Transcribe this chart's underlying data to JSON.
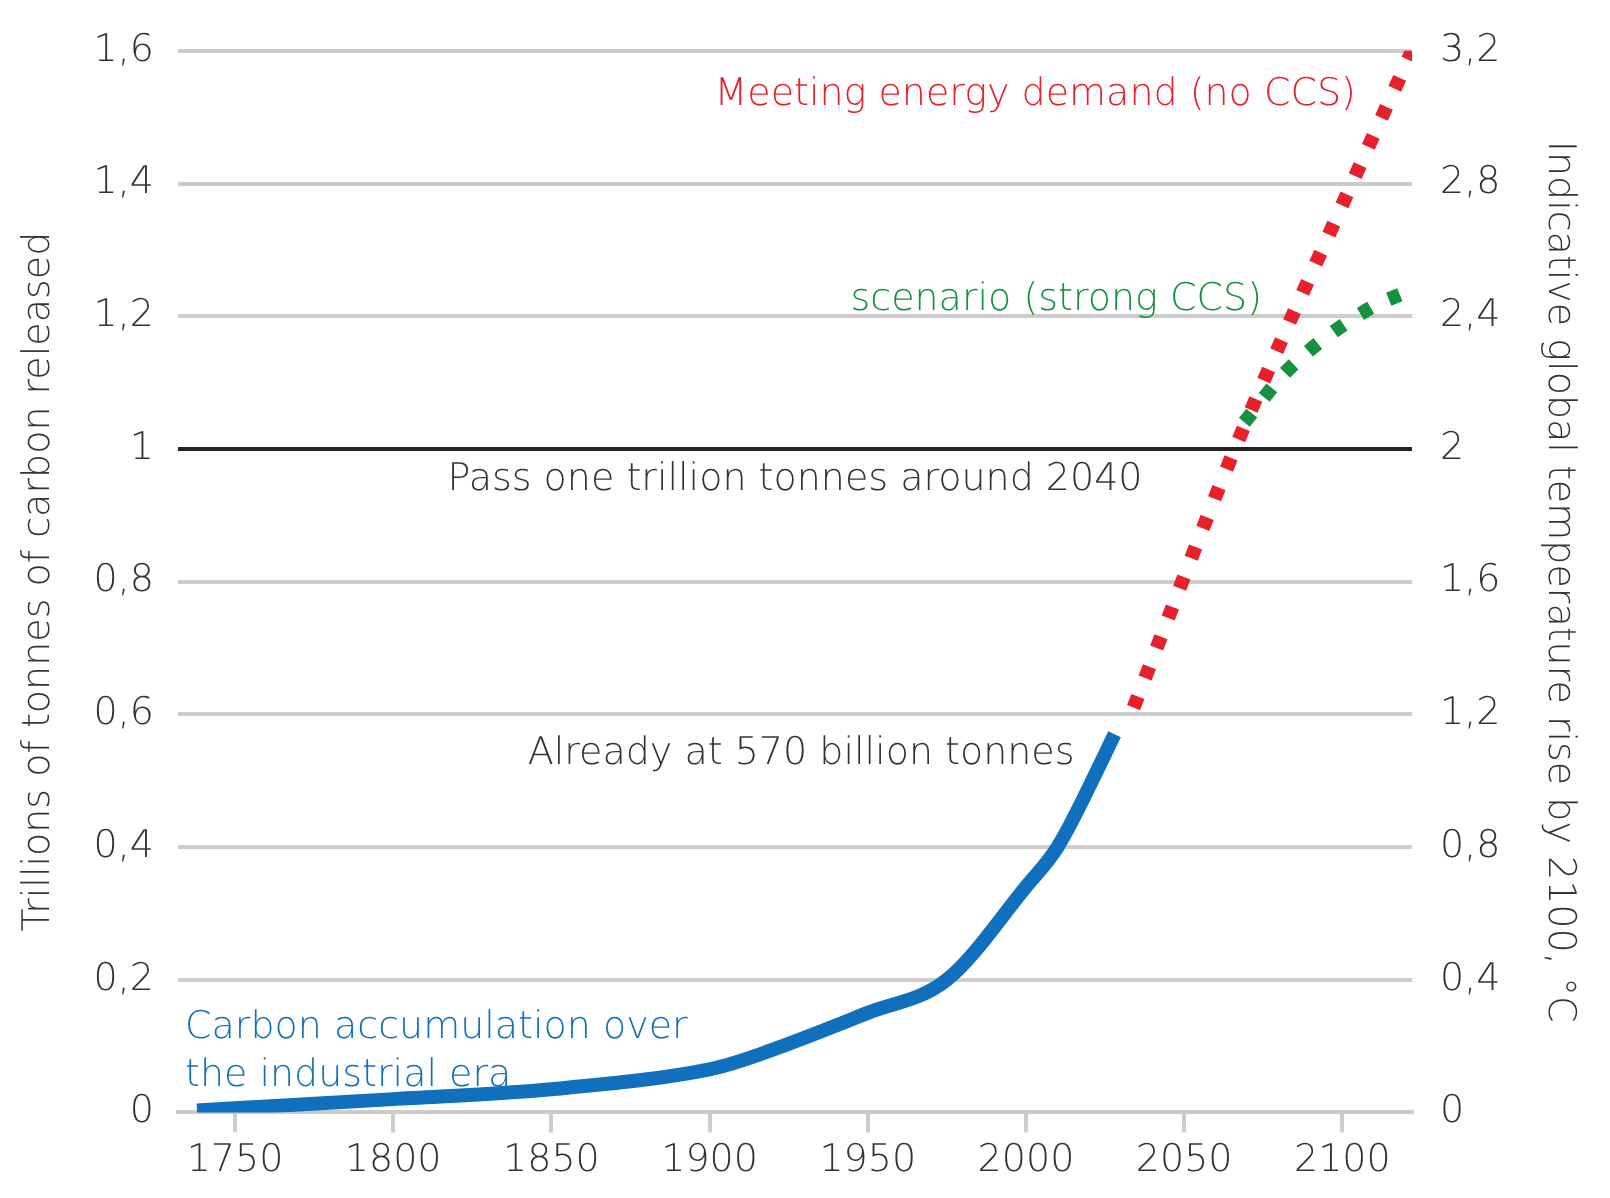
{
  "chart_data": {
    "type": "line",
    "ylabel": "Trillions of tonnes of carbon released",
    "y2label": "Indicative global temperature rise by 2100, °C",
    "xlim": [
      1732,
      2122
    ],
    "xticks": [
      1750,
      1800,
      1850,
      1900,
      1950,
      2000,
      2050,
      2100
    ],
    "ylim": [
      0,
      1.6
    ],
    "yticks": [
      0,
      {
        "value": 0.2,
        "label": "0,2"
      },
      {
        "value": 0.4,
        "label": "0,4"
      },
      {
        "value": 0.6,
        "label": "0,6"
      },
      {
        "value": 0.8,
        "label": "0,8"
      },
      1,
      {
        "value": 1.2,
        "label": "1,2"
      },
      {
        "value": 1.4,
        "label": "1,4"
      },
      {
        "value": 1.6,
        "label": "1,6"
      }
    ],
    "y2lim": [
      0,
      3.2
    ],
    "y2ticks": [
      0,
      {
        "value": 0.4,
        "label": "0,4"
      },
      {
        "value": 0.8,
        "label": "0,8"
      },
      {
        "value": 1.2,
        "label": "1,2"
      },
      {
        "value": 1.6,
        "label": "1,6"
      },
      2,
      {
        "value": 2.4,
        "label": "2,4"
      },
      {
        "value": 2.8,
        "label": "2,8"
      },
      {
        "value": 3.2,
        "label": "3,2"
      }
    ],
    "grid": "y",
    "legend": false,
    "marker": "none",
    "series": [
      {
        "name": "Carbon accumulation over the industrial era",
        "color": "#1170bd",
        "line_style": "solid",
        "x": [
          1738,
          1800,
          1850,
          1900,
          1910,
          1950,
          1975,
          2000,
          2010,
          2025,
          2028
        ],
        "values": [
          0.003,
          0.02,
          0.035,
          0.065,
          0.078,
          0.15,
          0.2,
          0.34,
          0.4,
          0.54,
          0.57
        ]
      },
      {
        "name": "Meeting energy demand (no CCS)",
        "color": "#e8202a",
        "line_style": "dotted",
        "x": [
          2034,
          2066,
          2103,
          2122
        ],
        "values": [
          0.61,
          1.0,
          1.4,
          1.6
        ]
      },
      {
        "name": "scenario (strong CCS)",
        "color": "#15923f",
        "line_style": "dotted",
        "x": [
          2069,
          2083,
          2108,
          2122
        ],
        "values": [
          1.04,
          1.12,
          1.21,
          1.24
        ]
      }
    ],
    "ref_lines": [
      {
        "axis": "y",
        "value": 1,
        "label": "Pass one trillion tonnes around 2040",
        "color": "#222222",
        "line_style": "solid"
      }
    ],
    "annotations": [
      {
        "text": "Already at 570 billion tonnes",
        "x": 2028,
        "y": 0.57
      }
    ]
  }
}
